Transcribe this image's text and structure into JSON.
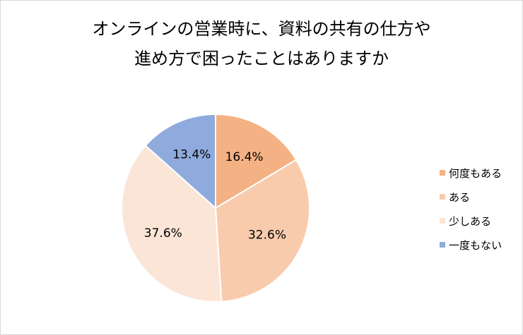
{
  "title_lines": [
    "オンラインの営業時に、資料の共有の仕方や",
    "進め方で困ったことはありますか"
  ],
  "chart_data": {
    "type": "pie",
    "title": "オンラインの営業時に、資料の共有の仕方や進め方で困ったことはありますか",
    "categories": [
      "何度もある",
      "ある",
      "少しある",
      "一度もない"
    ],
    "values": [
      16.4,
      32.6,
      37.6,
      13.4
    ],
    "value_labels": [
      "16.4%",
      "32.6%",
      "37.6%",
      "13.4%"
    ],
    "colors": [
      "#f4b183",
      "#f8cbad",
      "#fbe5d6",
      "#8faadc"
    ],
    "legend_position": "right",
    "start_angle": "12 o'clock",
    "direction": "clockwise"
  }
}
